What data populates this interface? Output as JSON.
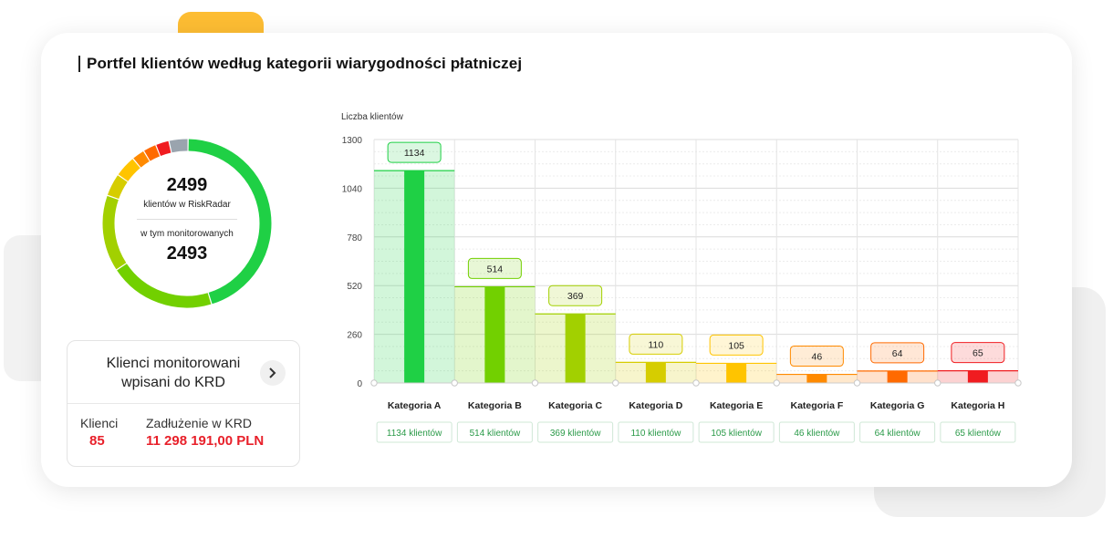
{
  "title": "Portfel klientów według kategorii wiarygodności płatniczej",
  "donut": {
    "total": "2499",
    "total_label": "klientów w RiskRadar",
    "monitored_label": "w tym monitorowanych",
    "monitored": "2493"
  },
  "krd": {
    "title": "Klienci monitorowani wpisani do KRD",
    "clients_label": "Klienci",
    "clients_value": "85",
    "debt_label": "Zadłużenie w KRD",
    "debt_value": "11 298 191,00 PLN"
  },
  "colors": {
    "A": "#1fd045",
    "B": "#72d000",
    "C": "#a2d000",
    "D": "#d6cd00",
    "E": "#ffc400",
    "F": "#ff8a00",
    "G": "#ff6a00",
    "H": "#f01c20",
    "other": "#9aa4ae"
  },
  "chart_data": {
    "type": "bar",
    "ylabel": "Liczba klientów",
    "ylim": [
      0,
      1300
    ],
    "yticks": [
      0,
      260,
      520,
      780,
      1040,
      1300
    ],
    "grid": true,
    "categories": [
      "Kategoria A",
      "Kategoria B",
      "Kategoria C",
      "Kategoria D",
      "Kategoria E",
      "Kategoria F",
      "Kategoria G",
      "Kategoria H"
    ],
    "values": [
      1134,
      514,
      369,
      110,
      105,
      46,
      64,
      65
    ],
    "value_labels": [
      "1134",
      "514",
      "369",
      "110",
      "105",
      "46",
      "64",
      "65"
    ],
    "count_labels": [
      "1134 klientów",
      "514 klientów",
      "369 klientów",
      "110 klientów",
      "105 klientów",
      "46 klientów",
      "64 klientów",
      "65 klientów"
    ]
  }
}
